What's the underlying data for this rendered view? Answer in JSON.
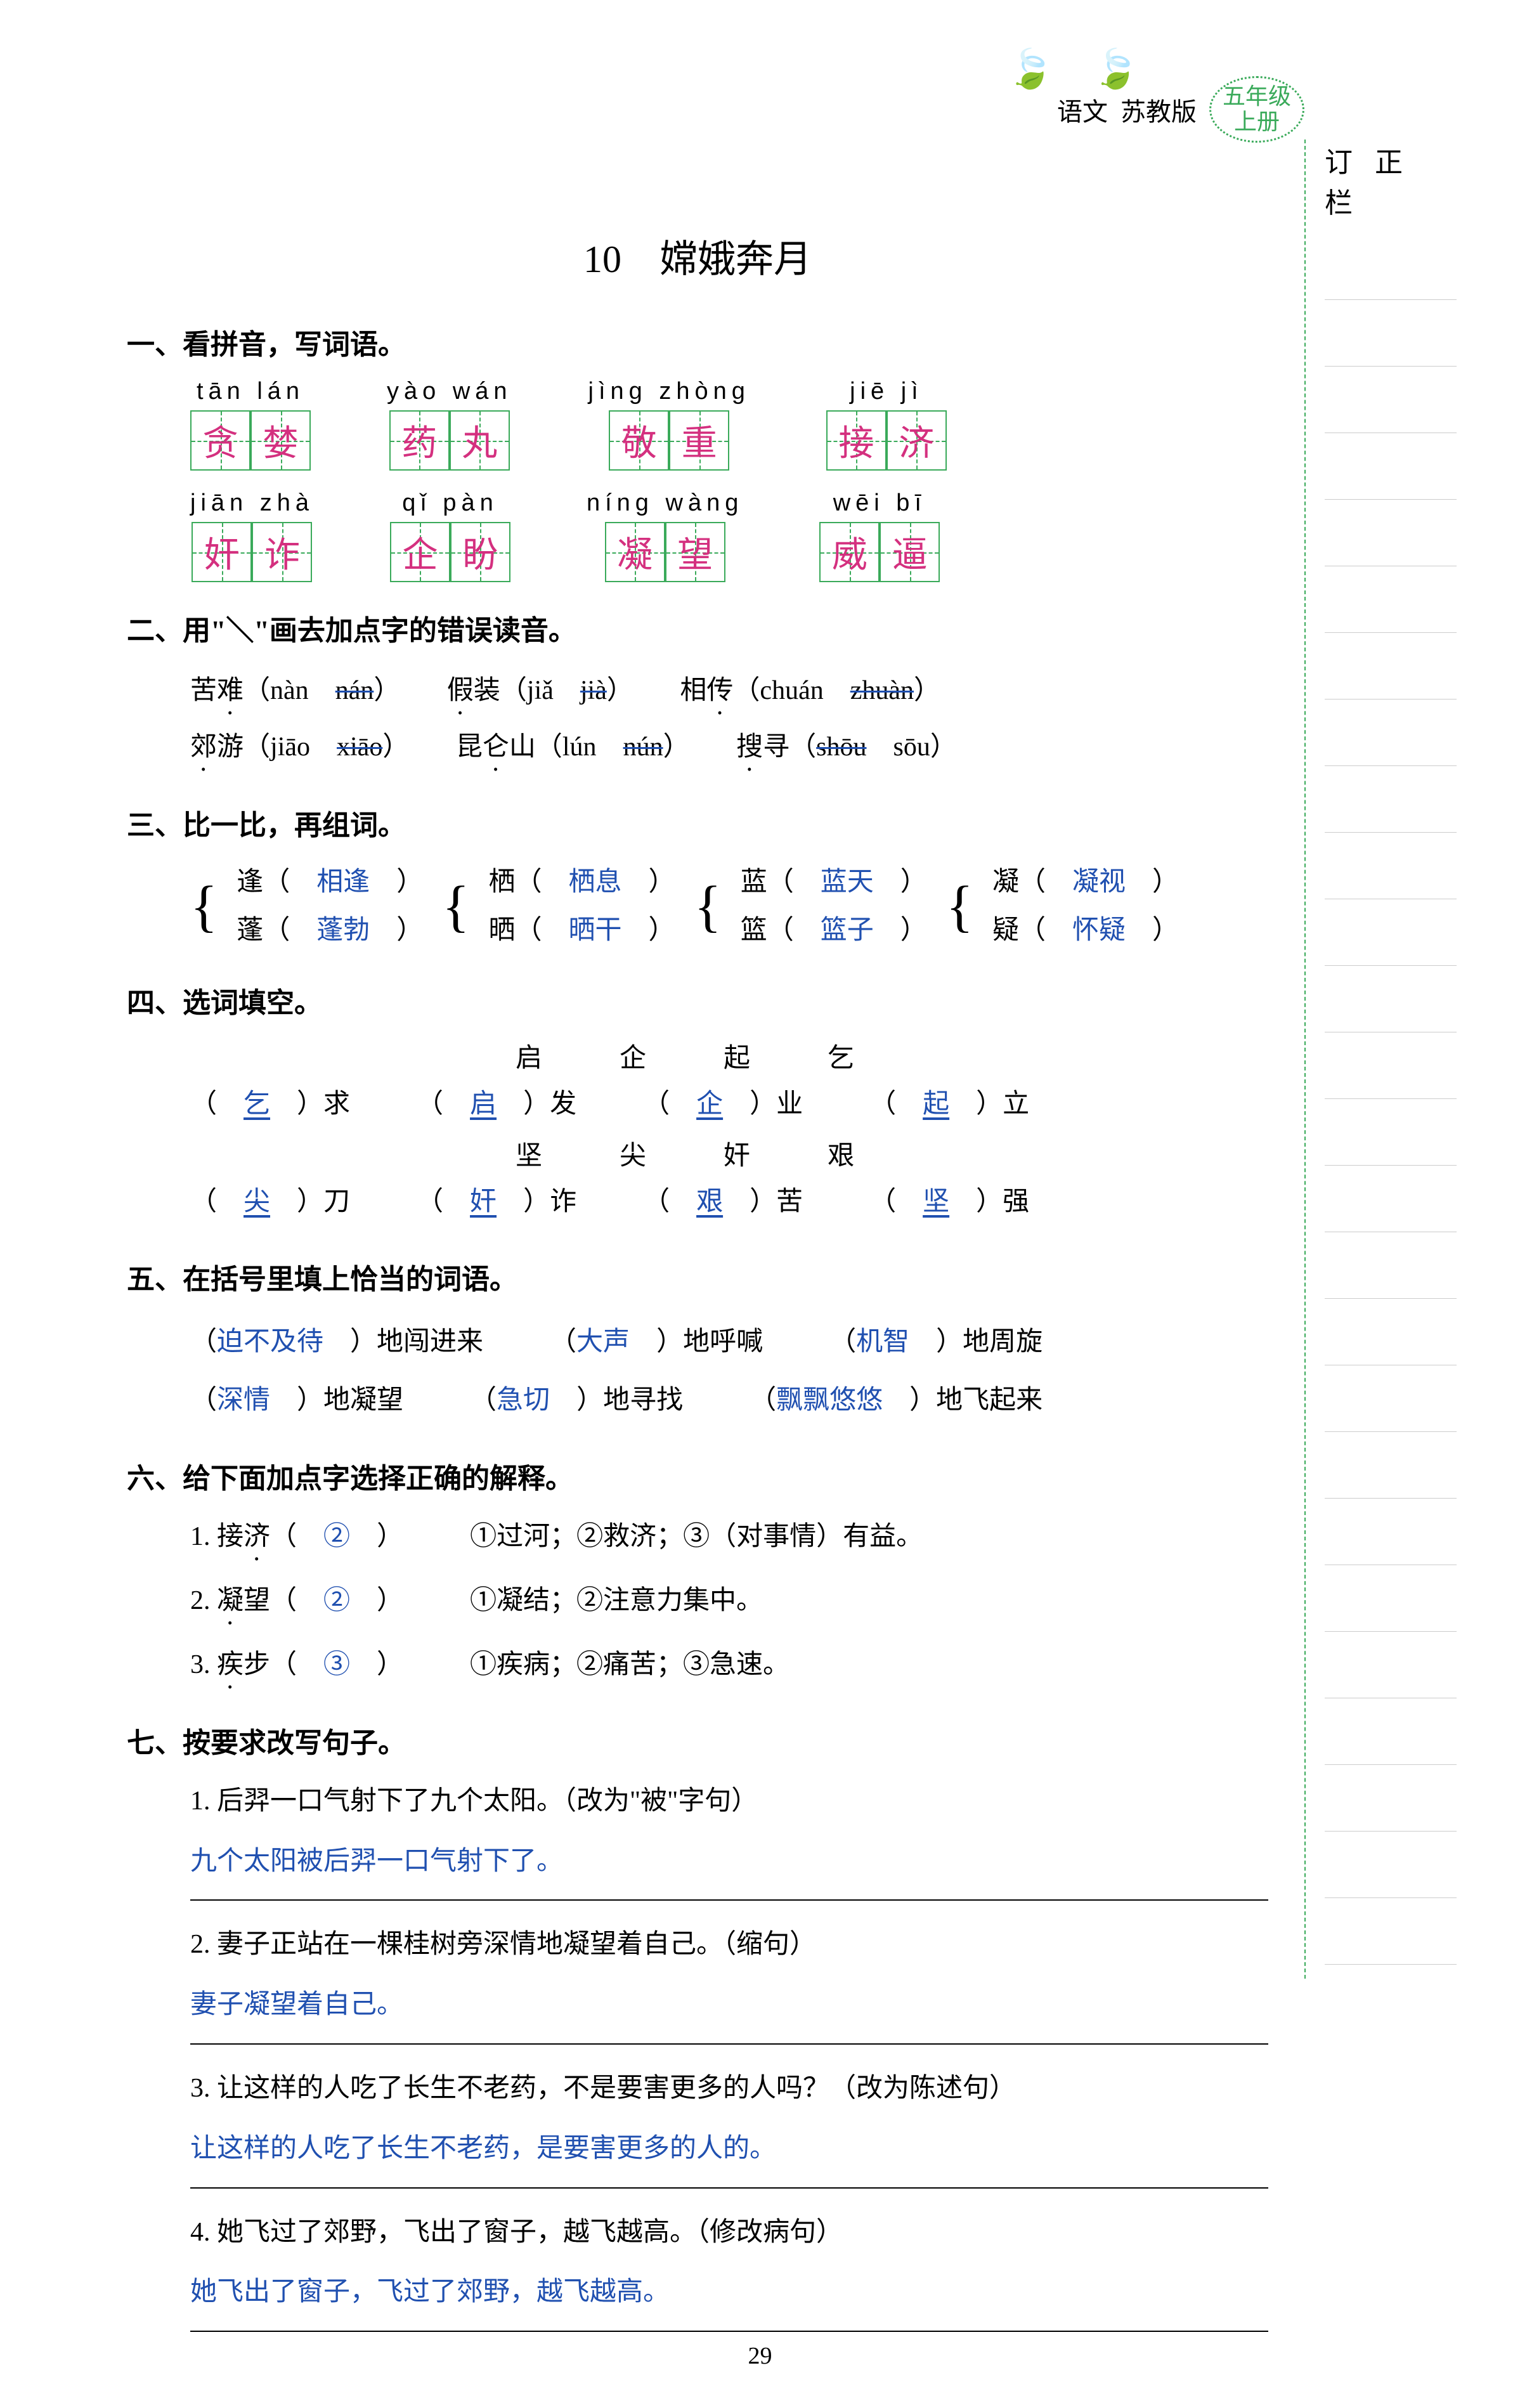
{
  "header": {
    "subject": "语文",
    "edition": "苏教版",
    "grade": "五年级",
    "volume": "上册"
  },
  "correction_title": "订 正 栏",
  "title": "10　嫦娥奔月",
  "page_number": "29",
  "s1": {
    "head": "一、看拼音，写词语。",
    "items": [
      {
        "pinyin": "tān  lán",
        "chars": [
          "贪",
          "婪"
        ]
      },
      {
        "pinyin": "yào  wán",
        "chars": [
          "药",
          "丸"
        ]
      },
      {
        "pinyin": "jìng  zhòng",
        "chars": [
          "敬",
          "重"
        ]
      },
      {
        "pinyin": "jiē  jì",
        "chars": [
          "接",
          "济"
        ]
      },
      {
        "pinyin": "jiān  zhà",
        "chars": [
          "奸",
          "诈"
        ]
      },
      {
        "pinyin": "qǐ  pàn",
        "chars": [
          "企",
          "盼"
        ]
      },
      {
        "pinyin": "níng  wàng",
        "chars": [
          "凝",
          "望"
        ]
      },
      {
        "pinyin": "wēi  bī",
        "chars": [
          "威",
          "逼"
        ]
      }
    ]
  },
  "s2": {
    "head": "二、用\"＼\"画去加点字的错误读音。",
    "line1_a": "苦难",
    "line1_a_opt": "（nàn　",
    "line1_a_wrong": "nán",
    "line1_a_end": "）",
    "line1_b": "假装",
    "line1_b_opt": "（jiǎ　",
    "line1_b_wrong": "jià",
    "line1_b_end": "）",
    "line1_c": "相传",
    "line1_c_opt": "（chuán　",
    "line1_c_wrong": "zhuàn",
    "line1_c_end": "）",
    "line2_a": "郊游",
    "line2_a_opt": "（jiāo　",
    "line2_a_wrong": "xiāo",
    "line2_a_end": "）",
    "line2_b": "昆仑山",
    "line2_b_opt": "（lún　",
    "line2_b_wrong": "nún",
    "line2_b_end": "）",
    "line2_c": "搜寻",
    "line2_c_opt": "（",
    "line2_c_wrong": "shōu",
    "line2_c_end": "　sōu）"
  },
  "s3": {
    "head": "三、比一比，再组词。",
    "pairs": [
      {
        "a": "逢",
        "a_ans": "相逢",
        "b": "蓬",
        "b_ans": "蓬勃"
      },
      {
        "a": "栖",
        "a_ans": "栖息",
        "b": "晒",
        "b_ans": "晒干"
      },
      {
        "a": "蓝",
        "a_ans": "蓝天",
        "b": "篮",
        "b_ans": "篮子"
      },
      {
        "a": "凝",
        "a_ans": "凝视",
        "b": "疑",
        "b_ans": "怀疑"
      }
    ]
  },
  "s4": {
    "head": "四、选词填空。",
    "opts1": "启　企　起　乞",
    "row1": [
      {
        "ans": "乞",
        "suf": "求"
      },
      {
        "ans": "启",
        "suf": "发"
      },
      {
        "ans": "企",
        "suf": "业"
      },
      {
        "ans": "起",
        "suf": "立"
      }
    ],
    "opts2": "坚　尖　奸　艰",
    "row2": [
      {
        "ans": "尖",
        "suf": "刀"
      },
      {
        "ans": "奸",
        "suf": "诈"
      },
      {
        "ans": "艰",
        "suf": "苦"
      },
      {
        "ans": "坚",
        "suf": "强"
      }
    ]
  },
  "s5": {
    "head": "五、在括号里填上恰当的词语。",
    "row1": [
      {
        "ans": "迫不及待",
        "suf": "地闯进来"
      },
      {
        "ans": "大声",
        "suf": "地呼喊"
      },
      {
        "ans": "机智",
        "suf": "地周旋"
      }
    ],
    "row2": [
      {
        "ans": "深情",
        "suf": "地凝望"
      },
      {
        "ans": "急切",
        "suf": "地寻找"
      },
      {
        "ans": "飘飘悠悠",
        "suf": "地飞起来"
      }
    ]
  },
  "s6": {
    "head": "六、给下面加点字选择正确的解释。",
    "items": [
      {
        "q": "1. 接",
        "dot": "济",
        "ans": "②",
        "opts": "①过河；②救济；③（对事情）有益。"
      },
      {
        "q": "2. ",
        "dot": "凝",
        "q2": "望",
        "ans": "②",
        "opts": "①凝结；②注意力集中。"
      },
      {
        "q": "3. ",
        "dot": "疾",
        "q2": "步",
        "ans": "③",
        "opts": "①疾病；②痛苦；③急速。"
      }
    ]
  },
  "s7": {
    "head": "七、按要求改写句子。",
    "items": [
      {
        "q": "1. 后羿一口气射下了九个太阳。（改为\"被\"字句）",
        "ans": "九个太阳被后羿一口气射下了。"
      },
      {
        "q": "2. 妻子正站在一棵桂树旁深情地凝望着自己。（缩句）",
        "ans": "妻子凝望着自己。"
      },
      {
        "q": "3. 让这样的人吃了长生不老药，不是要害更多的人吗？（改为陈述句）",
        "ans": "让这样的人吃了长生不老药，是要害更多的人的。"
      },
      {
        "q": "4. 她飞过了郊野，飞出了窗子，越飞越高。（修改病句）",
        "ans": "她飞出了窗子，飞过了郊野，越飞越高。"
      }
    ]
  }
}
